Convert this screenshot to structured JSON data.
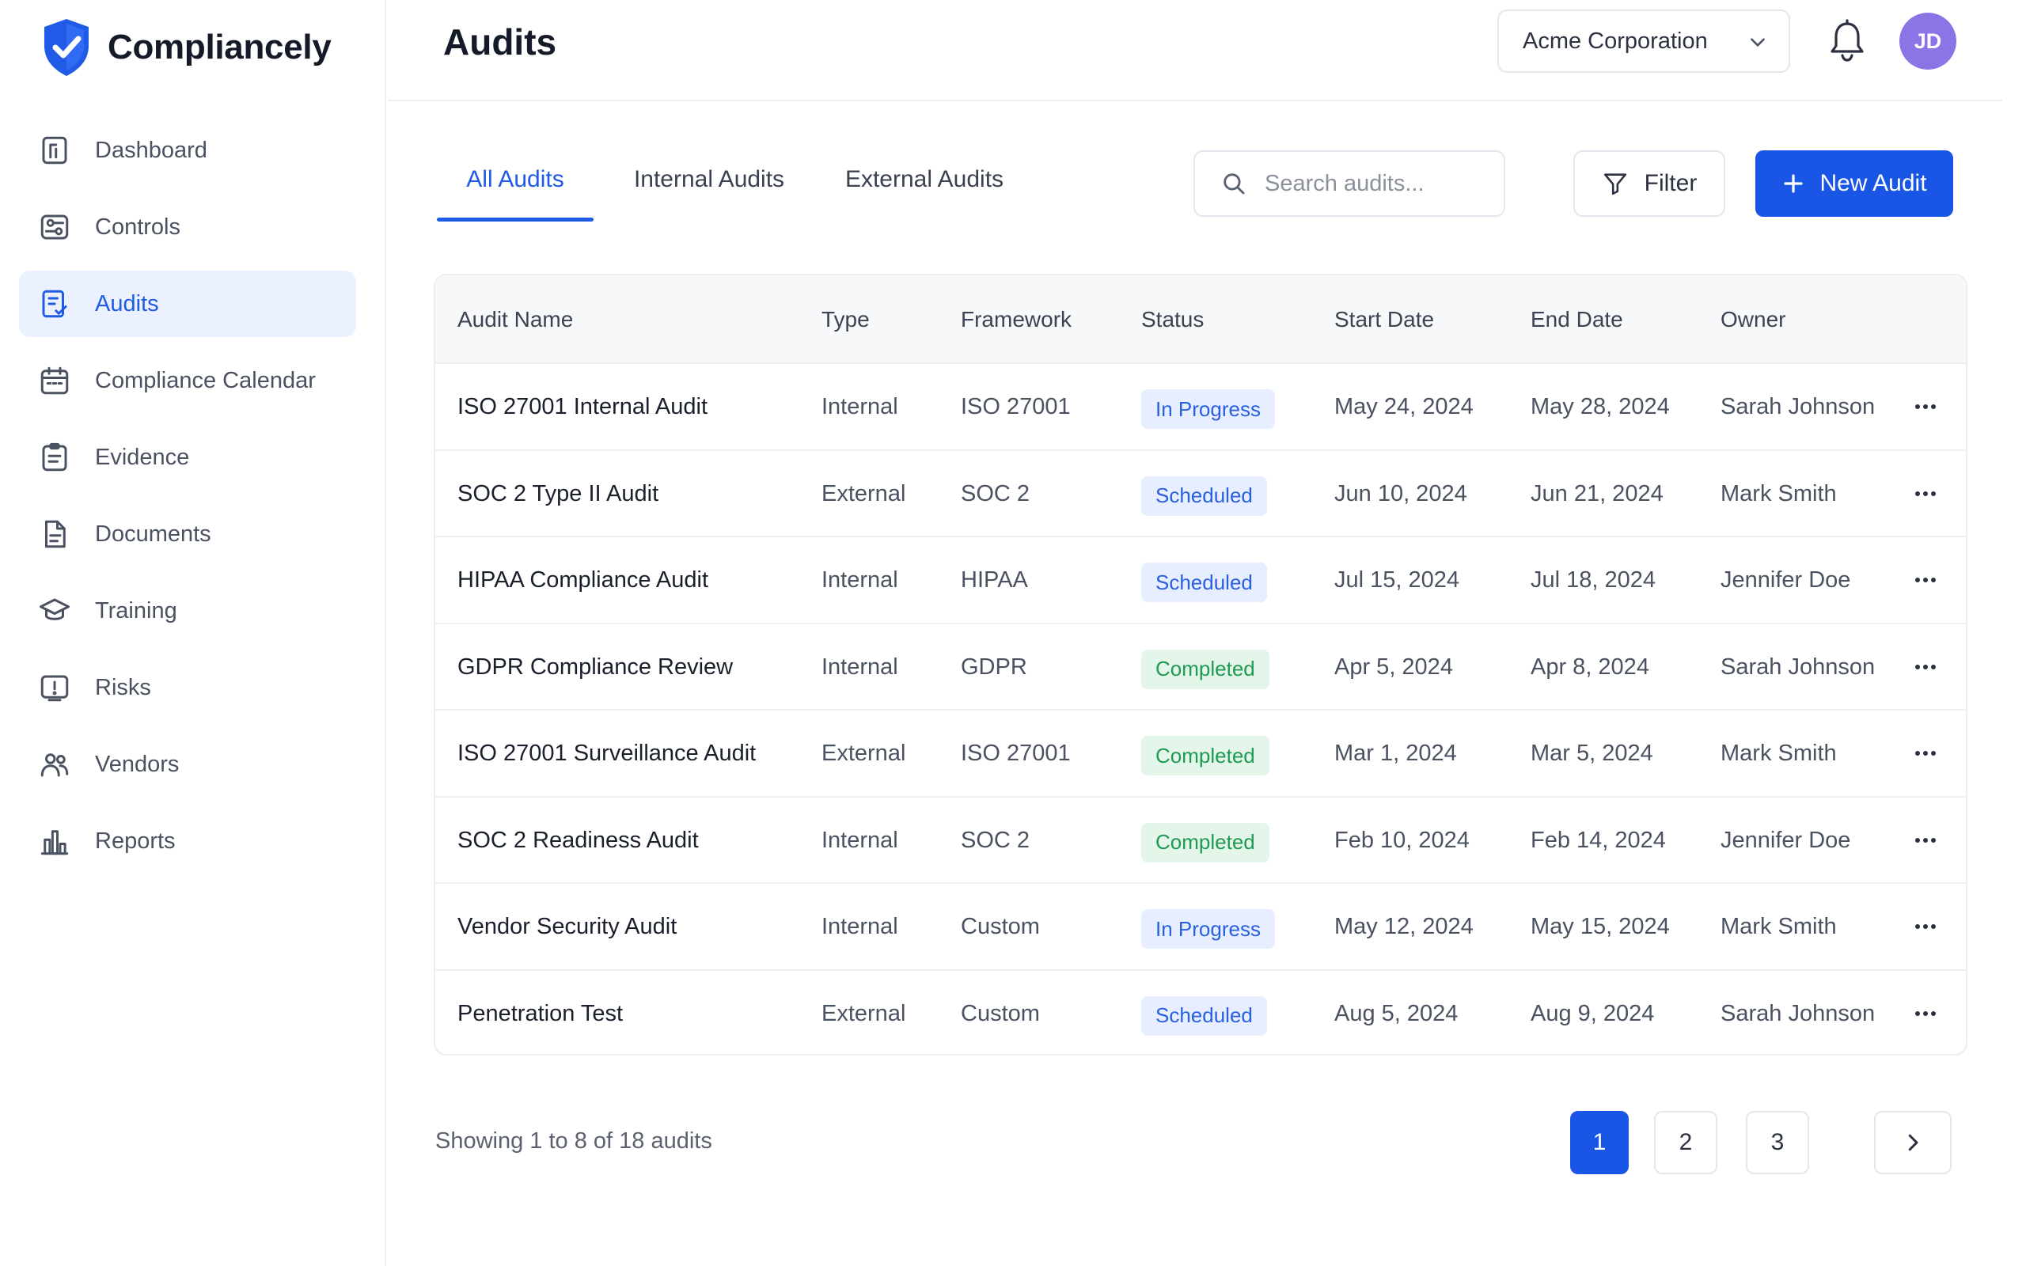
{
  "app": {
    "name": "Compliancely"
  },
  "sidebar": {
    "items": [
      {
        "label": "Dashboard",
        "icon": "dashboard-icon",
        "active": false
      },
      {
        "label": "Controls",
        "icon": "controls-icon",
        "active": false
      },
      {
        "label": "Audits",
        "icon": "audits-icon",
        "active": true
      },
      {
        "label": "Compliance Calendar",
        "icon": "calendar-icon",
        "active": false
      },
      {
        "label": "Evidence",
        "icon": "evidence-icon",
        "active": false
      },
      {
        "label": "Documents",
        "icon": "document-icon",
        "active": false
      },
      {
        "label": "Training",
        "icon": "graduation-cap-icon",
        "active": false
      },
      {
        "label": "Risks",
        "icon": "risk-icon",
        "active": false
      },
      {
        "label": "Vendors",
        "icon": "users-icon",
        "active": false
      },
      {
        "label": "Reports",
        "icon": "bar-chart-icon",
        "active": false
      }
    ]
  },
  "header": {
    "title": "Audits",
    "organization": "Acme Corporation",
    "avatar_initials": "JD"
  },
  "tabs": [
    {
      "label": "All Audits",
      "active": true
    },
    {
      "label": "Internal Audits",
      "active": false
    },
    {
      "label": "External Audits",
      "active": false
    }
  ],
  "search": {
    "placeholder": "Search audits...",
    "value": ""
  },
  "toolbar": {
    "filter_label": "Filter",
    "new_label": "New Audit"
  },
  "table": {
    "columns": [
      "Audit Name",
      "Type",
      "Framework",
      "Status",
      "Start Date",
      "End Date",
      "Owner"
    ],
    "rows": [
      {
        "name": "ISO 27001 Internal Audit",
        "type": "Internal",
        "framework": "ISO 27001",
        "status": "In Progress",
        "start": "May 24, 2024",
        "end": "May 28, 2024",
        "owner": "Sarah Johnson"
      },
      {
        "name": "SOC 2 Type II Audit",
        "type": "External",
        "framework": "SOC 2",
        "status": "Scheduled",
        "start": "Jun 10, 2024",
        "end": "Jun 21, 2024",
        "owner": "Mark Smith"
      },
      {
        "name": "HIPAA Compliance Audit",
        "type": "Internal",
        "framework": "HIPAA",
        "status": "Scheduled",
        "start": "Jul 15, 2024",
        "end": "Jul 18, 2024",
        "owner": "Jennifer Doe"
      },
      {
        "name": "GDPR Compliance Review",
        "type": "Internal",
        "framework": "GDPR",
        "status": "Completed",
        "start": "Apr 5, 2024",
        "end": "Apr 8, 2024",
        "owner": "Sarah Johnson"
      },
      {
        "name": "ISO 27001 Surveillance Audit",
        "type": "External",
        "framework": "ISO 27001",
        "status": "Completed",
        "start": "Mar 1, 2024",
        "end": "Mar 5, 2024",
        "owner": "Mark Smith"
      },
      {
        "name": "SOC 2 Readiness Audit",
        "type": "Internal",
        "framework": "SOC 2",
        "status": "Completed",
        "start": "Feb 10, 2024",
        "end": "Feb 14, 2024",
        "owner": "Jennifer Doe"
      },
      {
        "name": "Vendor Security Audit",
        "type": "Internal",
        "framework": "Custom",
        "status": "In Progress",
        "start": "May 12, 2024",
        "end": "May 15, 2024",
        "owner": "Mark Smith"
      },
      {
        "name": "Penetration Test",
        "type": "External",
        "framework": "Custom",
        "status": "Scheduled",
        "start": "Aug 5, 2024",
        "end": "Aug 9, 2024",
        "owner": "Sarah Johnson"
      }
    ]
  },
  "status_styles": {
    "In Progress": {
      "bg": "#e6eeff",
      "fg": "#2a5fe0"
    },
    "Scheduled": {
      "bg": "#e6eeff",
      "fg": "#2a5fe0"
    },
    "Completed": {
      "bg": "#e4f6ea",
      "fg": "#1f9a52"
    }
  },
  "footer": {
    "showing": "Showing 1 to 8 of 18 audits"
  },
  "pagination": {
    "pages": [
      "1",
      "2",
      "3"
    ],
    "current": "1"
  },
  "colors": {
    "accent": "#1a56e6",
    "sidebar_active_bg": "#ebf1ff"
  }
}
